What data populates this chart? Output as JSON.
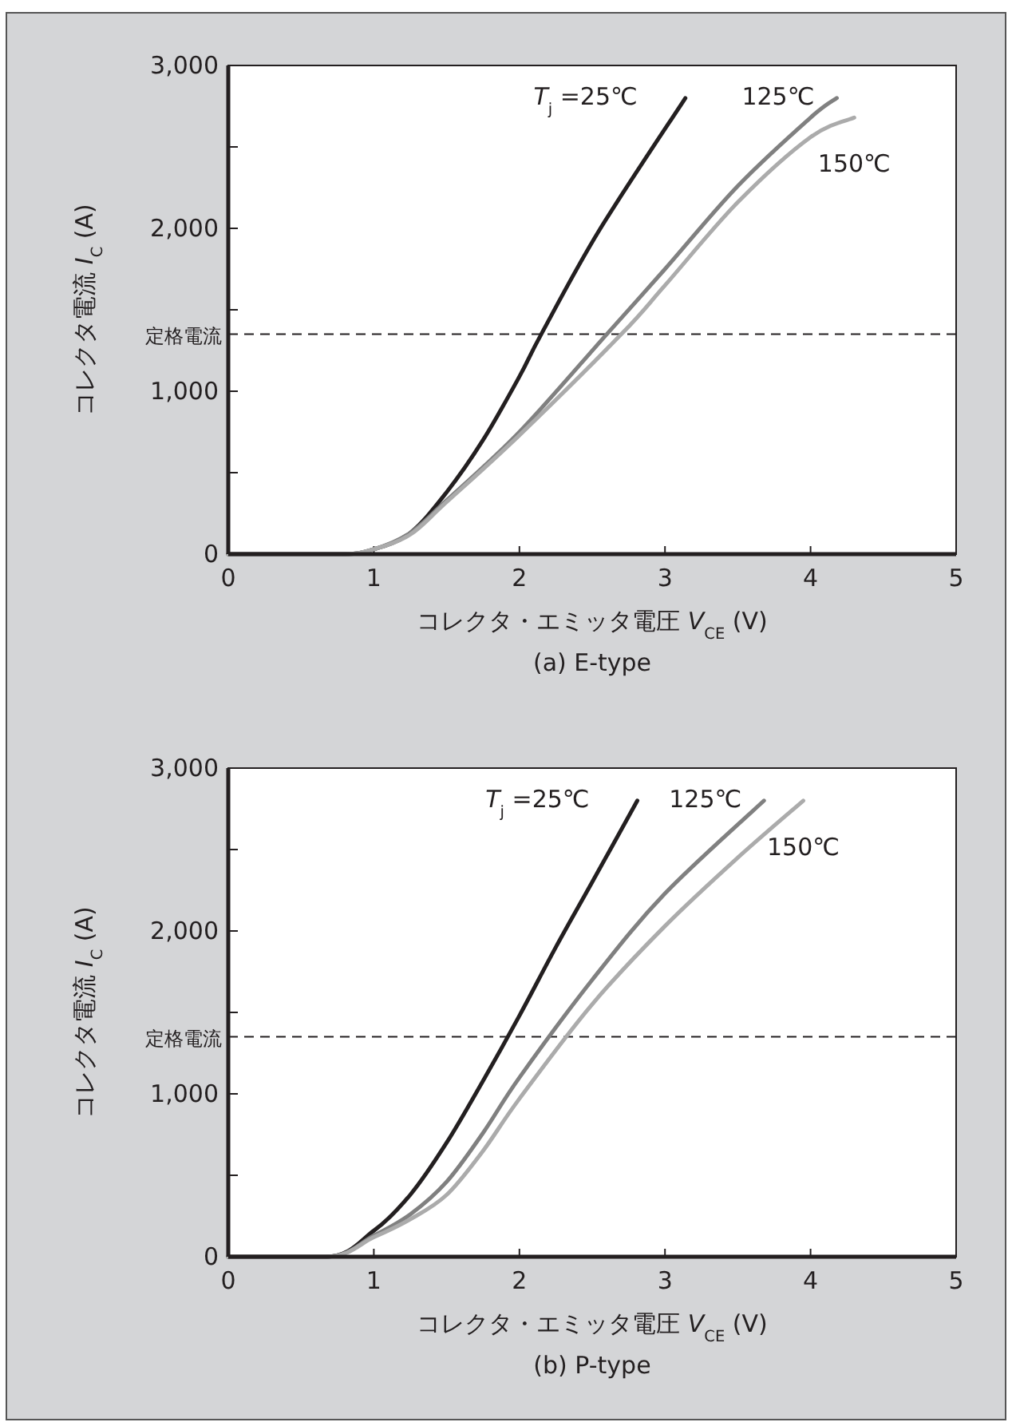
{
  "chart_data": [
    {
      "type": "line",
      "title": "(a) E-type",
      "xlabel": "コレクタ・エミッタ電圧 *V*$_{CE}$ (V)",
      "ylabel": "コレクタ電流 *I*$_{C}$ (A)",
      "xlim": [
        0,
        5
      ],
      "ylim": [
        0,
        3000
      ],
      "xticks": [
        0,
        1,
        2,
        3,
        4,
        5
      ],
      "yticks": [
        {
          "value": 0,
          "label": "0"
        },
        {
          "value": 500,
          "label": null
        },
        {
          "value": 1000,
          "label": "1,000"
        },
        {
          "value": 1500,
          "label": null
        },
        {
          "value": 2000,
          "label": "2,000"
        },
        {
          "value": 2500,
          "label": null
        },
        {
          "value": 3000,
          "label": "3,000"
        }
      ],
      "grid": false,
      "line_style": "solid",
      "marker": "none",
      "ref_lines": [
        {
          "axis": "y",
          "value": 1350,
          "label": "定格電流",
          "color": "#231f20",
          "line_style": "dashed"
        }
      ],
      "series": [
        {
          "name": "*T*$_{j}$ =25℃",
          "color": "#231f20",
          "x": [
            0,
            0.74,
            1,
            1.25,
            1.5,
            1.75,
            2,
            2.15,
            2.55,
            3.14
          ],
          "values": [
            0,
            0,
            30,
            130,
            380,
            700,
            1090,
            1350,
            1990,
            2800
          ]
        },
        {
          "name": "125℃",
          "color": "#808080",
          "x": [
            0,
            0.74,
            1,
            1.25,
            1.5,
            2,
            2.6,
            3,
            3.5,
            4,
            4.18
          ],
          "values": [
            0,
            0,
            30,
            130,
            330,
            750,
            1350,
            1750,
            2260,
            2680,
            2800
          ]
        },
        {
          "name": "150℃",
          "color": "#ababab",
          "x": [
            0,
            0.74,
            1,
            1.25,
            1.5,
            2,
            2.7,
            3,
            3.5,
            4,
            4.3
          ],
          "values": [
            0,
            0,
            30,
            120,
            320,
            730,
            1350,
            1650,
            2160,
            2560,
            2680
          ]
        }
      ]
    },
    {
      "type": "line",
      "title": "(b) P-type",
      "xlabel": "コレクタ・エミッタ電圧 *V*$_{CE}$ (V)",
      "ylabel": "コレクタ電流 *I*$_{C}$ (A)",
      "xlim": [
        0,
        5
      ],
      "ylim": [
        0,
        3000
      ],
      "xticks": [
        0,
        1,
        2,
        3,
        4,
        5
      ],
      "yticks": [
        {
          "value": 0,
          "label": "0"
        },
        {
          "value": 500,
          "label": null
        },
        {
          "value": 1000,
          "label": "1,000"
        },
        {
          "value": 1500,
          "label": null
        },
        {
          "value": 2000,
          "label": "2,000"
        },
        {
          "value": 2500,
          "label": null
        },
        {
          "value": 3000,
          "label": "3,000"
        }
      ],
      "grid": false,
      "line_style": "solid",
      "marker": "none",
      "ref_lines": [
        {
          "axis": "y",
          "value": 1350,
          "label": "定格電流",
          "color": "#231f20",
          "line_style": "dashed"
        }
      ],
      "series": [
        {
          "name": "*T*$_{j}$ =25℃",
          "color": "#231f20",
          "x": [
            0,
            0.67,
            1,
            1.25,
            1.5,
            1.75,
            2,
            2.25,
            2.5,
            2.81
          ],
          "values": [
            0,
            0,
            160,
            380,
            700,
            1080,
            1480,
            1900,
            2300,
            2800
          ]
        },
        {
          "name": "125℃",
          "color": "#808080",
          "x": [
            0,
            0.67,
            1,
            1.25,
            1.5,
            1.75,
            2,
            2.5,
            3,
            3.68
          ],
          "values": [
            0,
            0,
            130,
            260,
            460,
            760,
            1100,
            1700,
            2230,
            2800
          ]
        },
        {
          "name": "150℃",
          "color": "#ababab",
          "x": [
            0,
            0.67,
            1,
            1.25,
            1.5,
            1.75,
            2,
            2.5,
            3,
            3.5,
            3.95
          ],
          "values": [
            0,
            0,
            120,
            230,
            380,
            650,
            970,
            1550,
            2030,
            2450,
            2800
          ]
        }
      ]
    }
  ]
}
